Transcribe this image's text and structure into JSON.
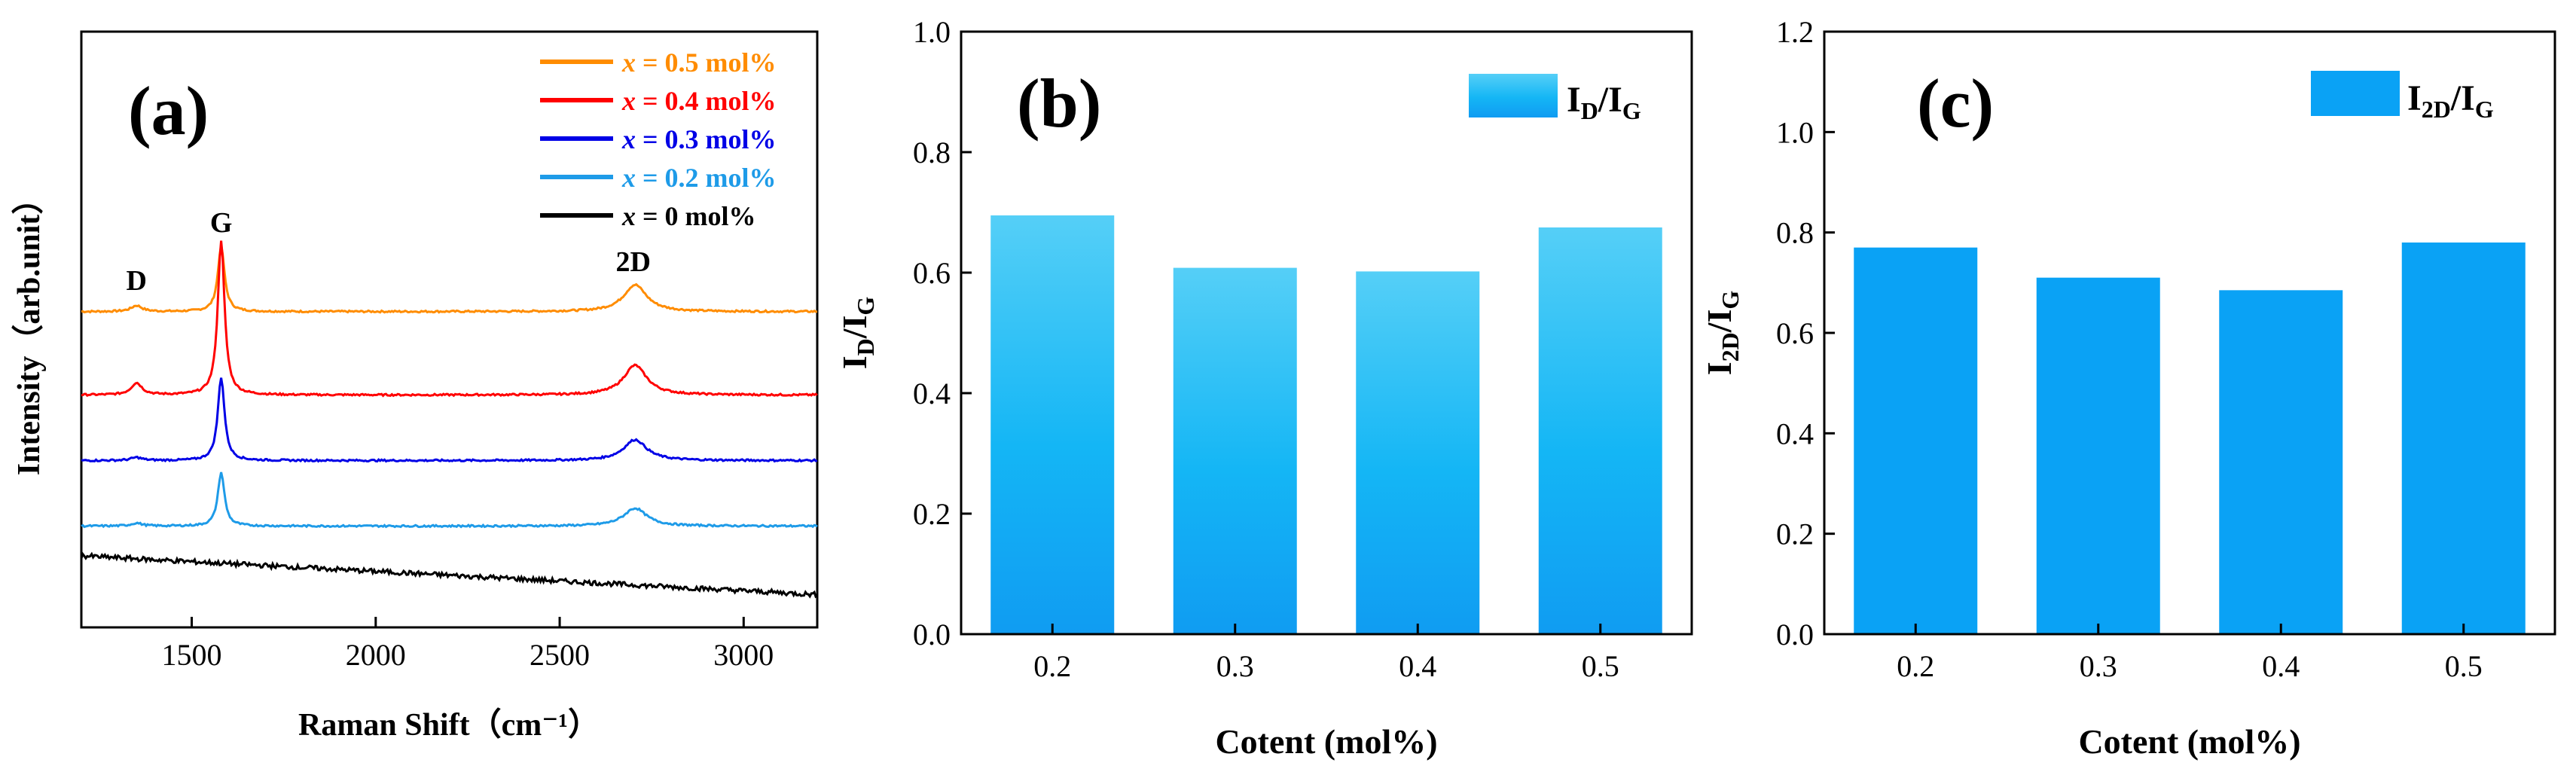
{
  "chart_data": [
    {
      "id": "a",
      "panel_label": "(a)",
      "type": "line",
      "xlabel": "Raman Shift",
      "xlabel_unit": "（cm⁻¹）",
      "ylabel": "Intensity（arb.unit）",
      "xlim": [
        1200,
        3200
      ],
      "xticks": [
        1500,
        2000,
        2500,
        3000
      ],
      "peak_labels": [
        {
          "text": "D",
          "x": 1350
        },
        {
          "text": "G",
          "x": 1580
        },
        {
          "text": "2D",
          "x": 2700
        }
      ],
      "series": [
        {
          "name_var": "x",
          "name_rest": " = 0.5 mol%",
          "color": "#ff8c00",
          "baseline": 0.53,
          "peaks": {
            "D": 0.01,
            "G": 0.11,
            "2D": 0.045
          },
          "slope": 0
        },
        {
          "name_var": "x",
          "name_rest": " = 0.4 mol%",
          "color": "#ff0000",
          "baseline": 0.39,
          "peaks": {
            "D": 0.02,
            "G": 0.26,
            "2D": 0.05
          },
          "slope": 0
        },
        {
          "name_var": "x",
          "name_rest": " = 0.3 mol%",
          "color": "#0000e6",
          "baseline": 0.28,
          "peaks": {
            "D": 0.005,
            "G": 0.14,
            "2D": 0.035
          },
          "slope": 0
        },
        {
          "name_var": "x",
          "name_rest": " = 0.2 mol%",
          "color": "#1e9be8",
          "baseline": 0.17,
          "peaks": {
            "D": 0.005,
            "G": 0.09,
            "2D": 0.03
          },
          "slope": 0
        },
        {
          "name_var": "x",
          "name_rest": " = 0 mol%",
          "color": "#000000",
          "baseline": 0.12,
          "peaks": {
            "D": 0,
            "G": 0,
            "2D": 0
          },
          "slope": -0.065
        }
      ]
    },
    {
      "id": "b",
      "panel_label": "(b)",
      "type": "bar",
      "categories": [
        "0.2",
        "0.3",
        "0.4",
        "0.5"
      ],
      "values": [
        0.695,
        0.608,
        0.602,
        0.675
      ],
      "ylim": [
        0,
        1.0
      ],
      "yticks": [
        0.0,
        0.2,
        0.4,
        0.6,
        0.8,
        1.0
      ],
      "xlabel": "Cotent (mol%)",
      "ylabel_main": "I",
      "ylabel_sub1": "D",
      "ylabel_mid": "/I",
      "ylabel_sub2": "G",
      "legend_main": "I",
      "legend_sub1": "D",
      "legend_mid": "/I",
      "legend_sub2": "G",
      "colors": {
        "top": "#55cff7",
        "mid": "#14b6f5",
        "bottom": "#109cf2"
      }
    },
    {
      "id": "c",
      "panel_label": "(c)",
      "type": "bar",
      "categories": [
        "0.2",
        "0.3",
        "0.4",
        "0.5"
      ],
      "values": [
        0.77,
        0.71,
        0.685,
        0.78
      ],
      "ylim": [
        0,
        1.2
      ],
      "yticks": [
        0.0,
        0.2,
        0.4,
        0.6,
        0.8,
        1.0,
        1.2
      ],
      "xlabel": "Cotent (mol%)",
      "ylabel_main": "I",
      "ylabel_sub1": "2D",
      "ylabel_mid": "/I",
      "ylabel_sub2": "G",
      "legend_main": "I",
      "legend_sub1": "2D",
      "legend_mid": "/I",
      "legend_sub2": "G",
      "colors": {
        "top": "#0aa2f5",
        "mid": "#0aa2f5",
        "bottom": "#0aa2f5"
      }
    }
  ]
}
